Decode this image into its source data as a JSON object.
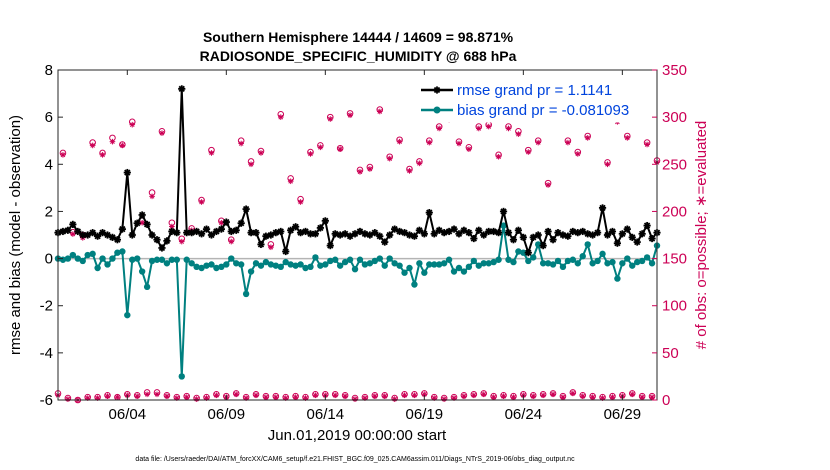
{
  "chart_data": {
    "type": "line",
    "title_line1": "Southern Hemisphere 14444 / 14609 = 98.871%",
    "title_line2": "RADIOSONDE_SPECIFIC_HUMIDITY @ 688 hPa",
    "ylabel_left": "rmse and bias (model - observation)",
    "ylabel_right": "# of obs: o=possible; ∗=evaluated",
    "xlabel": "Jun.01,2019 00:00:00 start",
    "footnote": "data file: /Users/raeder/DAI/ATM_forcXX/CAM6_setup/f.e21.FHIST_BGC.f09_025.CAM6assim.011/Diags_NTrS_2019-06/obs_diag_output.nc",
    "ylim_left": [
      -6,
      8
    ],
    "ylim_right": [
      0,
      350
    ],
    "xlim": [
      0.5,
      30.75
    ],
    "x_ticks": [
      4,
      9,
      14,
      19,
      24,
      29
    ],
    "x_tick_labels": [
      "06/04",
      "06/09",
      "06/14",
      "06/19",
      "06/24",
      "06/29"
    ],
    "y_ticks_left": [
      -6,
      -4,
      -2,
      0,
      2,
      4,
      6,
      8
    ],
    "y_ticks_left_labels": [
      "-6",
      "-4",
      "-2",
      "0",
      "2",
      "4",
      "6",
      "8"
    ],
    "y_ticks_right": [
      0,
      50,
      100,
      150,
      200,
      250,
      300,
      350
    ],
    "y_ticks_right_labels": [
      "0",
      "50",
      "100",
      "150",
      "200",
      "250",
      "300",
      "350"
    ],
    "colors": {
      "rmse": "#000000",
      "bias": "#008080",
      "counts": "#cc0055",
      "zero_line": "#b4b4b4",
      "legend_text": "#0044dd"
    },
    "legend": [
      {
        "name": "rmse grand pr = 1.1141"
      },
      {
        "name": "bias grand pr = -0.081093"
      }
    ],
    "x": [
      0.5,
      0.75,
      1.0,
      1.25,
      1.5,
      1.75,
      2.0,
      2.25,
      2.5,
      2.75,
      3.0,
      3.25,
      3.5,
      3.75,
      4.0,
      4.25,
      4.5,
      4.75,
      5.0,
      5.25,
      5.5,
      5.75,
      6.0,
      6.25,
      6.5,
      6.75,
      7.0,
      7.25,
      7.5,
      7.75,
      8.0,
      8.25,
      8.5,
      8.75,
      9.0,
      9.25,
      9.5,
      9.75,
      10.0,
      10.25,
      10.5,
      10.75,
      11.0,
      11.25,
      11.5,
      11.75,
      12.0,
      12.25,
      12.5,
      12.75,
      13.0,
      13.25,
      13.5,
      13.75,
      14.0,
      14.25,
      14.5,
      14.75,
      15.0,
      15.25,
      15.5,
      15.75,
      16.0,
      16.25,
      16.5,
      16.75,
      17.0,
      17.25,
      17.5,
      17.75,
      18.0,
      18.25,
      18.5,
      18.75,
      19.0,
      19.25,
      19.5,
      19.75,
      20.0,
      20.25,
      20.5,
      20.75,
      21.0,
      21.25,
      21.5,
      21.75,
      22.0,
      22.25,
      22.5,
      22.75,
      23.0,
      23.25,
      23.5,
      23.75,
      24.0,
      24.25,
      24.5,
      24.75,
      25.0,
      25.25,
      25.5,
      25.75,
      26.0,
      26.25,
      26.5,
      26.75,
      27.0,
      27.25,
      27.5,
      27.75,
      28.0,
      28.25,
      28.5,
      28.75,
      29.0,
      29.25,
      29.5,
      29.75,
      30.0,
      30.25,
      30.5,
      30.75
    ],
    "series": [
      {
        "name": "rmse",
        "values": [
          1.1,
          1.15,
          1.2,
          1.45,
          1.15,
          1.0,
          1.0,
          1.1,
          0.95,
          1.1,
          1.0,
          0.9,
          0.8,
          1.25,
          3.65,
          1.0,
          1.5,
          1.85,
          1.45,
          1.0,
          0.8,
          0.45,
          0.75,
          1.15,
          1.1,
          7.2,
          1.1,
          1.1,
          1.15,
          1.05,
          1.25,
          1.0,
          1.15,
          1.25,
          1.55,
          1.15,
          1.2,
          1.5,
          2.1,
          1.1,
          1.1,
          0.6,
          0.95,
          1.0,
          1.1,
          1.15,
          0.3,
          1.2,
          1.35,
          1.1,
          1.15,
          1.05,
          1.05,
          1.3,
          1.6,
          0.55,
          1.05,
          1.0,
          1.05,
          0.95,
          1.05,
          1.15,
          1.05,
          1.0,
          1.1,
          0.95,
          0.7,
          1.0,
          1.25,
          1.15,
          1.1,
          1.0,
          0.95,
          1.2,
          1.05,
          1.95,
          1.05,
          1.2,
          1.1,
          1.15,
          1.25,
          1.05,
          1.2,
          1.1,
          0.85,
          1.2,
          1.0,
          1.15,
          1.15,
          1.1,
          2.0,
          1.1,
          0.8,
          1.2,
          0.9,
          0.25,
          0.9,
          1.0,
          0.55,
          1.15,
          0.8,
          1.1,
          1.0,
          0.95,
          1.15,
          1.1,
          1.15,
          1.05,
          1.0,
          1.1,
          2.15,
          1.0,
          1.15,
          0.65,
          1.05,
          1.25,
          0.9,
          0.7,
          1.05,
          1.4,
          0.85,
          1.1
        ]
      },
      {
        "name": "bias",
        "values": [
          0.0,
          -0.05,
          0.0,
          0.15,
          0.0,
          -0.1,
          0.15,
          0.2,
          -0.4,
          0.0,
          -0.25,
          0.0,
          0.25,
          0.3,
          -2.4,
          -0.05,
          0.0,
          -0.55,
          -1.2,
          -0.1,
          -0.05,
          -0.05,
          -0.2,
          -0.05,
          -0.05,
          -5.0,
          -0.05,
          -0.2,
          -0.35,
          -0.4,
          -0.3,
          -0.25,
          -0.4,
          -0.35,
          -0.25,
          0.0,
          -0.2,
          -0.25,
          -1.5,
          -0.55,
          -0.2,
          -0.3,
          -0.15,
          -0.25,
          -0.3,
          -0.35,
          -0.15,
          -0.25,
          -0.3,
          -0.25,
          -0.4,
          -0.35,
          0.05,
          -0.3,
          -0.25,
          -0.1,
          -0.05,
          -0.3,
          -0.15,
          -0.05,
          -0.45,
          -0.05,
          -0.25,
          -0.2,
          -0.1,
          0.0,
          -0.3,
          0.0,
          -0.2,
          -0.3,
          -0.6,
          -0.4,
          -1.1,
          -0.2,
          -0.6,
          -0.25,
          -0.25,
          -0.25,
          -0.2,
          -0.05,
          -0.55,
          -0.4,
          -0.55,
          -0.35,
          -0.1,
          -0.3,
          -0.2,
          -0.2,
          -0.15,
          -0.05,
          1.4,
          -0.05,
          -0.15,
          0.3,
          0.25,
          -0.1,
          0.05,
          0.6,
          -0.2,
          -0.2,
          -0.25,
          -0.1,
          -0.35,
          -0.1,
          -0.05,
          -0.2,
          0.1,
          0.6,
          -0.2,
          -0.1,
          0.2,
          -0.2,
          -0.15,
          -0.85,
          -0.2,
          0.0,
          -0.3,
          -0.15,
          -0.1,
          0.05,
          -0.2,
          0.55
        ]
      },
      {
        "name": "possible",
        "values": [
          7,
          262,
          2,
          178,
          0,
          175,
          3,
          273,
          3,
          262,
          5,
          278,
          3,
          271,
          6,
          295,
          5,
          190,
          8,
          220,
          8,
          285,
          5,
          188,
          3,
          171,
          4,
          182,
          2,
          212,
          3,
          265,
          6,
          190,
          4,
          170,
          7,
          275,
          3,
          253,
          6,
          264,
          4,
          165,
          4,
          303,
          3,
          235,
          4,
          213,
          3,
          263,
          6,
          270,
          6,
          300,
          6,
          267,
          5,
          304,
          2,
          244,
          3,
          247,
          5,
          308,
          5,
          258,
          2,
          276,
          6,
          245,
          6,
          253,
          7,
          275,
          3,
          290,
          2,
          299,
          3,
          274,
          5,
          268,
          6,
          290,
          7,
          292,
          4,
          260,
          5,
          290,
          4,
          285,
          6,
          265,
          5,
          275,
          6,
          230,
          7,
          304,
          4,
          275,
          8,
          263,
          5,
          280,
          4,
          300,
          3,
          252,
          4,
          297,
          5,
          280,
          7,
          310,
          4,
          273,
          4,
          254
        ]
      },
      {
        "name": "evaluated",
        "values": [
          5,
          260,
          1,
          176,
          0,
          172,
          2,
          270,
          2,
          260,
          4,
          274,
          3,
          270,
          5,
          292,
          4,
          188,
          6,
          216,
          6,
          283,
          4,
          184,
          2,
          168,
          3,
          180,
          1,
          210,
          2,
          262,
          5,
          188,
          3,
          168,
          6,
          272,
          2,
          250,
          5,
          262,
          3,
          162,
          3,
          300,
          2,
          232,
          3,
          210,
          2,
          261,
          5,
          268,
          5,
          298,
          5,
          266,
          4,
          302,
          1,
          242,
          2,
          245,
          4,
          306,
          4,
          256,
          1,
          274,
          5,
          243,
          5,
          251,
          6,
          273,
          2,
          288,
          1,
          297,
          2,
          272,
          4,
          266,
          5,
          288,
          6,
          290,
          3,
          258,
          4,
          288,
          3,
          282,
          5,
          263,
          4,
          273,
          5,
          228,
          6,
          302,
          3,
          273,
          7,
          261,
          4,
          278,
          3,
          298,
          2,
          250,
          3,
          295,
          4,
          278,
          6,
          308,
          3,
          271,
          3,
          252
        ]
      }
    ]
  }
}
